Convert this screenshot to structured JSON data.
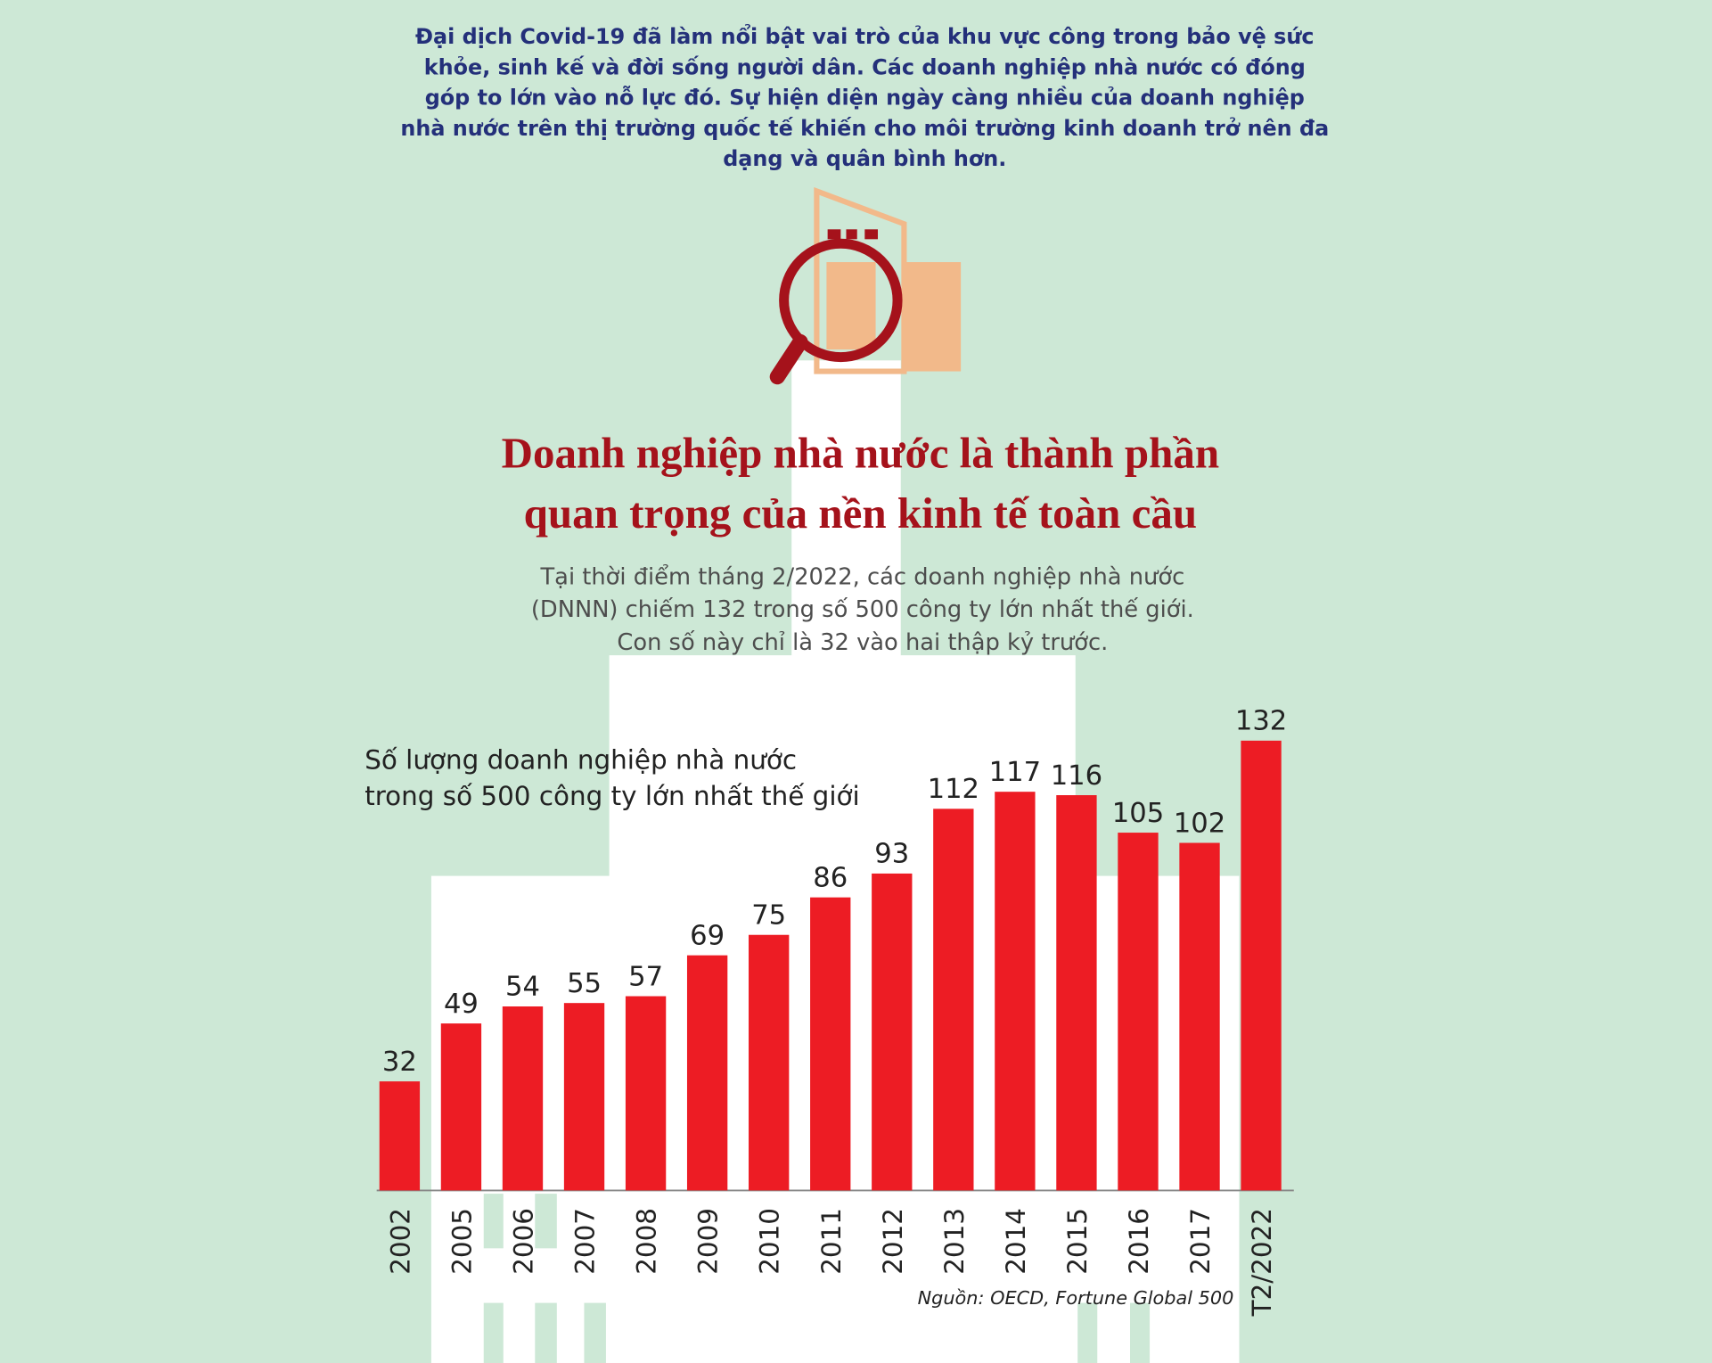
{
  "intro": [
    "Đại dịch Covid-19 đã làm nổi bật vai trò của khu vực công trong bảo vệ sức",
    "khỏe, sinh kế và đời sống người dân. Các doanh nghiệp nhà nước có đóng",
    "góp to lớn vào nỗ lực đó. Sự hiện diện ngày càng nhiều của doanh nghiệp",
    "nhà nước trên thị trường quốc tế khiến cho môi trường kinh doanh trở nên đa",
    "dạng và quân bình hơn."
  ],
  "headline": [
    "Doanh nghiệp nhà nước là thành phần",
    "quan trọng của nền kinh tế toàn cầu"
  ],
  "summary": [
    "Tại thời điểm tháng 2/2022, các doanh nghiệp nhà nước",
    "(DNNN) chiếm 132 trong số 500 công ty lớn nhất thế giới.",
    "Con số này chỉ là 32 vào hai thập kỷ trước."
  ],
  "chart_data": {
    "type": "bar",
    "title": [
      "Số lượng doanh nghiệp nhà nước",
      "trong số 500 công ty lớn nhất thế giới"
    ],
    "categories": [
      "2002",
      "2005",
      "2006",
      "2007",
      "2008",
      "2009",
      "2010",
      "2011",
      "2012",
      "2013",
      "2014",
      "2015",
      "2016",
      "2017",
      "T2/2022"
    ],
    "values": [
      32,
      49,
      54,
      55,
      57,
      69,
      75,
      86,
      93,
      112,
      117,
      116,
      105,
      102,
      132
    ],
    "color": "#ed1c24",
    "source": "Nguồn: OECD, Fortune Global 500"
  }
}
